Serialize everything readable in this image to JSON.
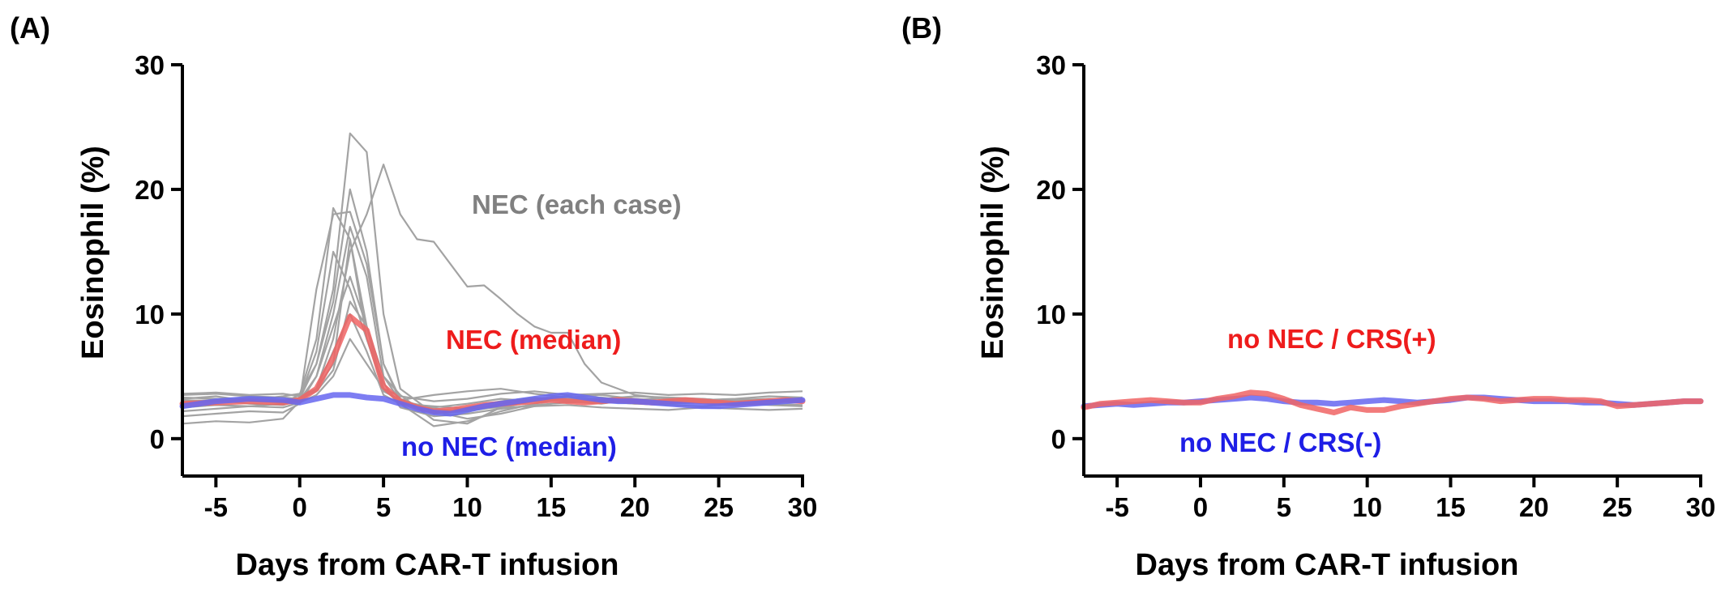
{
  "colors": {
    "case": "#a3a3a3",
    "nec_median": "#f06464",
    "no_nec_median": "#6666f0",
    "case_label": "#808080",
    "red_label": "#ee1c1c",
    "blue_label": "#1e1ee6"
  },
  "chart_data": [
    {
      "type": "line",
      "panel_label": "(A)",
      "xlabel": "Days from CAR-T infusion",
      "ylabel": "Eosinophil (%)",
      "xlim": [
        -7,
        30
      ],
      "ylim": [
        -3,
        30
      ],
      "xticks": [
        -5,
        0,
        5,
        10,
        15,
        20,
        25,
        30
      ],
      "yticks": [
        0,
        10,
        20,
        30
      ],
      "annotations": [
        {
          "text": "NEC (each case)",
          "color_key": "case_label"
        },
        {
          "text": "NEC (median)",
          "color_key": "red_label"
        },
        {
          "text": "no NEC (median)",
          "color_key": "blue_label"
        }
      ],
      "case_series": [
        {
          "x": [
            -7,
            -5,
            -3,
            -1,
            0,
            1,
            2,
            3,
            4,
            5,
            6,
            8,
            10,
            12,
            14,
            16,
            18,
            20,
            22,
            24,
            26,
            28,
            30
          ],
          "values": [
            3.2,
            3.4,
            3.0,
            2.9,
            3.5,
            8,
            18.5,
            16,
            9,
            4,
            3,
            2.5,
            2.8,
            3.2,
            3.0,
            3.1,
            2.9,
            3.0,
            2.8,
            2.9,
            3.0,
            3.1,
            3.0
          ]
        },
        {
          "x": [
            -7,
            -5,
            -3,
            -1,
            0,
            1,
            2,
            3,
            4,
            5,
            6,
            8,
            10,
            12,
            14,
            16,
            18,
            20,
            22,
            24,
            26,
            28,
            30
          ],
          "values": [
            3.0,
            3.1,
            3.3,
            3.0,
            3.2,
            6,
            12,
            24.5,
            23,
            10,
            4,
            2.0,
            2.2,
            2.8,
            3.2,
            3.4,
            3.0,
            2.8,
            3.0,
            2.9,
            3.1,
            3.0,
            3.2
          ]
        },
        {
          "x": [
            -7,
            -5,
            -3,
            -1,
            0,
            1,
            2,
            3,
            4,
            5,
            6,
            7,
            8,
            9,
            10,
            11,
            12,
            13,
            14,
            15,
            16,
            17,
            18,
            20,
            22,
            24,
            26,
            28,
            30
          ],
          "values": [
            2.8,
            3.0,
            3.2,
            3.1,
            3.0,
            4,
            8,
            15,
            18,
            22,
            18,
            16,
            15.8,
            14,
            12.2,
            12.3,
            11.2,
            10,
            9,
            8.5,
            8.5,
            6,
            4.5,
            3.5,
            3.2,
            3.0,
            2.9,
            3.0,
            3.1
          ]
        },
        {
          "x": [
            -7,
            -5,
            -3,
            -1,
            0,
            1,
            2,
            3,
            4,
            5,
            6,
            8,
            10,
            12,
            14,
            16,
            18,
            20,
            22,
            24,
            26,
            28,
            30
          ],
          "values": [
            1.2,
            1.4,
            1.3,
            1.6,
            3.0,
            12,
            18,
            18.2,
            14,
            6,
            3,
            2.0,
            2.5,
            3.0,
            3.3,
            3.0,
            2.8,
            3.2,
            3.0,
            2.9,
            2.8,
            3.0,
            2.9
          ]
        },
        {
          "x": [
            -7,
            -5,
            -3,
            -1,
            0,
            1,
            2,
            3,
            4,
            5,
            6,
            8,
            10,
            12,
            14,
            16,
            18,
            20,
            22,
            24,
            26,
            28,
            30
          ],
          "values": [
            3.5,
            3.6,
            3.4,
            3.3,
            3.1,
            5,
            10,
            17,
            13,
            5,
            3.5,
            1.5,
            1.2,
            2.5,
            3.0,
            3.1,
            3.3,
            3.0,
            3.1,
            3.2,
            3.0,
            3.1,
            3.3
          ]
        },
        {
          "x": [
            -7,
            -5,
            -3,
            -1,
            0,
            1,
            2,
            3,
            4,
            5,
            6,
            8,
            10,
            12,
            14,
            16,
            18,
            20,
            22,
            24,
            26,
            28,
            30
          ],
          "values": [
            2.5,
            2.7,
            2.6,
            2.8,
            3.3,
            7,
            15,
            12,
            8,
            4.5,
            2.5,
            1.8,
            2.0,
            2.4,
            2.7,
            2.9,
            3.0,
            2.8,
            2.7,
            2.6,
            2.8,
            2.7,
            2.6
          ]
        },
        {
          "x": [
            -7,
            -5,
            -3,
            -1,
            0,
            1,
            2,
            3,
            4,
            5,
            6,
            8,
            10,
            12,
            14,
            16,
            18,
            20,
            22,
            24,
            26,
            28,
            30
          ],
          "values": [
            3.3,
            3.2,
            3.1,
            3.4,
            3.6,
            6,
            11,
            20,
            15,
            6,
            3.2,
            2.2,
            1.6,
            2.0,
            2.6,
            3.0,
            3.2,
            3.4,
            3.3,
            3.1,
            3.2,
            3.4,
            3.3
          ]
        },
        {
          "x": [
            -7,
            -5,
            -3,
            -1,
            0,
            1,
            2,
            3,
            4,
            5,
            6,
            8,
            10,
            12,
            14,
            16,
            18,
            20,
            22,
            24,
            26,
            28,
            30
          ],
          "values": [
            1.8,
            2.0,
            2.2,
            2.1,
            2.8,
            5,
            9,
            13,
            9,
            5,
            3.0,
            2.4,
            2.2,
            2.6,
            3.0,
            3.2,
            3.1,
            2.9,
            3.0,
            3.1,
            2.9,
            2.8,
            2.7
          ]
        },
        {
          "x": [
            -7,
            -5,
            -3,
            -1,
            0,
            1,
            2,
            3,
            4,
            5,
            6,
            8,
            10,
            12,
            14,
            16,
            18,
            20,
            22,
            24,
            26,
            28,
            30
          ],
          "values": [
            2.9,
            3.1,
            2.8,
            2.7,
            3.1,
            4,
            7,
            10,
            7,
            3.5,
            2.8,
            1.0,
            1.4,
            2.2,
            2.8,
            3.3,
            3.5,
            3.2,
            3.0,
            2.9,
            3.1,
            3.2,
            3.1
          ]
        },
        {
          "x": [
            -7,
            -5,
            -3,
            -1,
            0,
            1,
            2,
            3,
            4,
            5,
            6,
            8,
            10,
            12,
            14,
            16,
            18,
            20,
            22,
            24,
            26,
            28,
            30
          ],
          "values": [
            3.6,
            3.7,
            3.5,
            3.6,
            3.4,
            4,
            6,
            16,
            8,
            4,
            3.4,
            3.0,
            3.2,
            3.6,
            3.8,
            3.5,
            3.6,
            3.7,
            3.5,
            3.6,
            3.5,
            3.7,
            3.8
          ]
        },
        {
          "x": [
            -7,
            -5,
            -3,
            -1,
            0,
            1,
            2,
            3,
            4,
            5,
            6,
            8,
            10,
            12,
            14,
            16,
            18,
            20,
            22,
            24,
            26,
            28,
            30
          ],
          "values": [
            2.2,
            2.4,
            2.6,
            2.5,
            2.9,
            3.5,
            5,
            8,
            6,
            4,
            2.8,
            2.6,
            2.4,
            2.5,
            2.6,
            2.7,
            2.5,
            2.4,
            2.3,
            2.5,
            2.4,
            2.3,
            2.4
          ]
        },
        {
          "x": [
            -7,
            -5,
            -3,
            -1,
            0,
            1,
            2,
            3,
            4,
            5,
            6,
            8,
            10,
            12,
            14,
            16,
            18,
            20,
            22,
            24,
            26,
            28,
            30
          ],
          "values": [
            3.1,
            3.0,
            3.2,
            3.3,
            3.2,
            3.8,
            5.5,
            11,
            9,
            3.8,
            3.1,
            3.5,
            3.8,
            4.0,
            3.6,
            3.3,
            3.2,
            3.1,
            3.3,
            3.2,
            3.0,
            3.1,
            3.2
          ]
        }
      ],
      "series": [
        {
          "name": "NEC (median)",
          "color_key": "nec_median",
          "x": [
            -7,
            -5,
            -3,
            -1,
            0,
            1,
            2,
            3,
            4,
            5,
            6,
            7,
            8,
            9,
            10,
            11,
            12,
            13,
            14,
            15,
            16,
            17,
            18,
            19,
            20,
            21,
            22,
            23,
            24,
            25,
            26,
            27,
            28,
            29,
            30
          ],
          "values": [
            2.8,
            2.9,
            3.0,
            2.9,
            3.1,
            4.0,
            6.5,
            9.8,
            8.7,
            4.2,
            3.0,
            2.5,
            2.2,
            2.3,
            2.5,
            2.7,
            2.8,
            2.9,
            3.0,
            3.1,
            3.0,
            2.9,
            3.0,
            3.1,
            3.0,
            2.9,
            3.0,
            3.1,
            3.0,
            2.9,
            2.8,
            2.9,
            3.0,
            3.1,
            3.0
          ]
        },
        {
          "name": "no NEC (median)",
          "color_key": "no_nec_median",
          "x": [
            -7,
            -5,
            -3,
            -1,
            0,
            1,
            2,
            3,
            4,
            5,
            6,
            7,
            8,
            9,
            10,
            11,
            12,
            13,
            14,
            15,
            16,
            17,
            18,
            19,
            20,
            21,
            22,
            23,
            24,
            25,
            26,
            27,
            28,
            29,
            30
          ],
          "values": [
            2.6,
            3.0,
            3.2,
            3.1,
            2.9,
            3.2,
            3.5,
            3.5,
            3.3,
            3.2,
            2.8,
            2.4,
            2.1,
            2.0,
            2.3,
            2.6,
            2.8,
            3.0,
            3.2,
            3.4,
            3.5,
            3.3,
            3.1,
            3.0,
            3.0,
            2.9,
            2.8,
            2.7,
            2.6,
            2.6,
            2.7,
            2.8,
            2.9,
            3.0,
            3.1
          ]
        }
      ]
    },
    {
      "type": "line",
      "panel_label": "(B)",
      "xlabel": "Days from CAR-T infusion",
      "ylabel": "Eosinophil (%)",
      "xlim": [
        -7,
        30
      ],
      "ylim": [
        -3,
        30
      ],
      "xticks": [
        -5,
        0,
        5,
        10,
        15,
        20,
        25,
        30
      ],
      "yticks": [
        0,
        10,
        20,
        30
      ],
      "annotations": [
        {
          "text": "no NEC / CRS(+)",
          "color_key": "red_label"
        },
        {
          "text": "no NEC / CRS(-)",
          "color_key": "blue_label"
        }
      ],
      "case_series": [],
      "series": [
        {
          "name": "no NEC / CRS(-)",
          "color_key": "no_nec_median",
          "x": [
            -7,
            -6,
            -5,
            -4,
            -3,
            -2,
            -1,
            0,
            1,
            2,
            3,
            4,
            5,
            6,
            7,
            8,
            9,
            10,
            11,
            12,
            13,
            14,
            15,
            16,
            17,
            18,
            19,
            20,
            21,
            22,
            23,
            24,
            25,
            26,
            27,
            28,
            29,
            30
          ],
          "values": [
            2.6,
            2.7,
            2.8,
            2.7,
            2.8,
            2.9,
            2.9,
            3.0,
            3.1,
            3.2,
            3.3,
            3.2,
            3.0,
            2.9,
            2.9,
            2.8,
            2.9,
            3.0,
            3.1,
            3.0,
            2.9,
            3.0,
            3.1,
            3.3,
            3.3,
            3.2,
            3.1,
            3.0,
            3.0,
            3.0,
            2.9,
            2.9,
            2.8,
            2.7,
            2.8,
            2.9,
            3.0,
            3.0
          ]
        },
        {
          "name": "no NEC / CRS(+)",
          "color_key": "nec_median",
          "x": [
            -7,
            -6,
            -5,
            -4,
            -3,
            -2,
            -1,
            0,
            1,
            2,
            3,
            4,
            5,
            6,
            7,
            8,
            9,
            10,
            11,
            12,
            13,
            14,
            15,
            16,
            17,
            18,
            19,
            20,
            21,
            22,
            23,
            24,
            25,
            26,
            27,
            28,
            29,
            30
          ],
          "values": [
            2.5,
            2.8,
            2.9,
            3.0,
            3.1,
            3.0,
            2.9,
            2.9,
            3.2,
            3.4,
            3.7,
            3.6,
            3.2,
            2.7,
            2.4,
            2.1,
            2.5,
            2.3,
            2.3,
            2.6,
            2.8,
            3.0,
            3.2,
            3.3,
            3.2,
            3.0,
            3.1,
            3.2,
            3.2,
            3.1,
            3.1,
            3.0,
            2.6,
            2.7,
            2.8,
            2.9,
            3.0,
            3.0
          ]
        }
      ]
    }
  ]
}
